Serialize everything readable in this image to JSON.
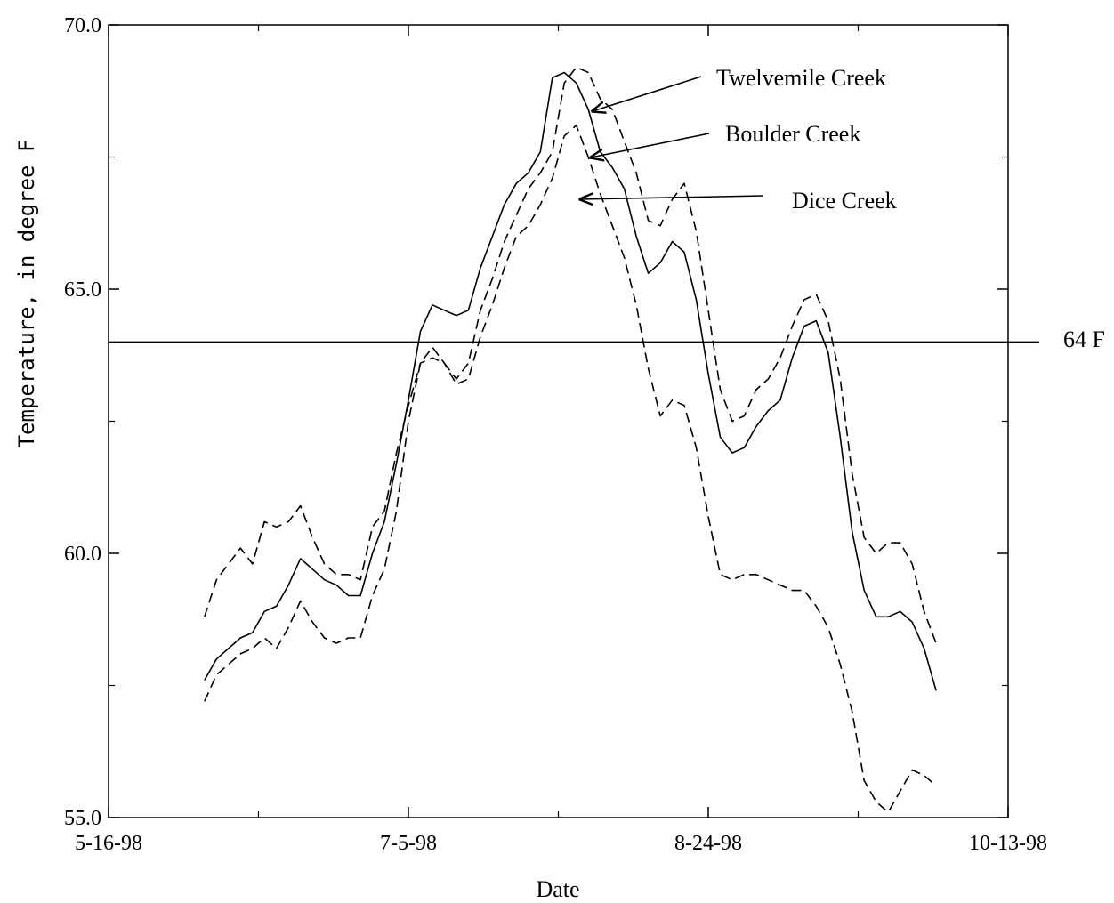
{
  "chart_data": {
    "type": "line",
    "title": "",
    "xlabel": "Date",
    "ylabel": "Temperature, in degree F",
    "x_ticks": [
      "5-16-98",
      "7-5-98",
      "8-24-98",
      "10-13-98"
    ],
    "y_ticks": [
      "55.0",
      "60.0",
      "65.0",
      "70.0"
    ],
    "xlim": [
      "1998-05-16",
      "1998-10-13"
    ],
    "ylim": [
      55.0,
      70.0
    ],
    "grid": false,
    "reference_line": {
      "label": "64 F",
      "y": 64.0
    },
    "x": [
      "1998-06-01",
      "1998-06-03",
      "1998-06-05",
      "1998-06-07",
      "1998-06-09",
      "1998-06-11",
      "1998-06-13",
      "1998-06-15",
      "1998-06-17",
      "1998-06-19",
      "1998-06-21",
      "1998-06-23",
      "1998-06-25",
      "1998-06-27",
      "1998-06-29",
      "1998-07-01",
      "1998-07-03",
      "1998-07-05",
      "1998-07-07",
      "1998-07-09",
      "1998-07-11",
      "1998-07-13",
      "1998-07-15",
      "1998-07-17",
      "1998-07-19",
      "1998-07-21",
      "1998-07-23",
      "1998-07-25",
      "1998-07-27",
      "1998-07-29",
      "1998-07-31",
      "1998-08-02",
      "1998-08-04",
      "1998-08-06",
      "1998-08-08",
      "1998-08-10",
      "1998-08-12",
      "1998-08-14",
      "1998-08-16",
      "1998-08-18",
      "1998-08-20",
      "1998-08-22",
      "1998-08-24",
      "1998-08-26",
      "1998-08-28",
      "1998-08-30",
      "1998-09-01",
      "1998-09-03",
      "1998-09-05",
      "1998-09-07",
      "1998-09-09",
      "1998-09-11",
      "1998-09-13",
      "1998-09-15",
      "1998-09-17",
      "1998-09-19",
      "1998-09-21",
      "1998-09-23",
      "1998-09-25",
      "1998-09-27",
      "1998-09-29",
      "1998-10-01"
    ],
    "series": [
      {
        "name": "Twelvemile Creek",
        "style": "dashed",
        "values": [
          58.8,
          59.5,
          59.8,
          60.1,
          59.8,
          60.6,
          60.5,
          60.6,
          60.9,
          60.3,
          59.8,
          59.6,
          59.6,
          59.5,
          60.5,
          60.8,
          61.9,
          62.8,
          63.6,
          63.7,
          63.6,
          63.3,
          63.6,
          64.6,
          65.2,
          65.9,
          66.4,
          66.9,
          67.2,
          67.6,
          68.9,
          69.2,
          69.1,
          68.6,
          68.4,
          67.8,
          67.2,
          66.3,
          66.2,
          66.7,
          67.0,
          66.1,
          64.6,
          63.1,
          62.5,
          62.6,
          63.1,
          63.3,
          63.7,
          64.3,
          64.8,
          64.9,
          64.4,
          63.3,
          61.5,
          60.3,
          60.0,
          60.2,
          60.2,
          59.8,
          58.9,
          58.3
        ]
      },
      {
        "name": "Boulder Creek",
        "style": "solid",
        "values": [
          57.6,
          58.0,
          58.2,
          58.4,
          58.5,
          58.9,
          59.0,
          59.4,
          59.9,
          59.7,
          59.5,
          59.4,
          59.2,
          59.2,
          60.0,
          60.6,
          61.7,
          62.9,
          64.2,
          64.7,
          64.6,
          64.5,
          64.6,
          65.4,
          66.0,
          66.6,
          67.0,
          67.2,
          67.6,
          69.0,
          69.1,
          68.9,
          68.4,
          67.6,
          67.3,
          66.9,
          66.0,
          65.3,
          65.5,
          65.9,
          65.7,
          64.8,
          63.4,
          62.2,
          61.9,
          62.0,
          62.4,
          62.7,
          62.9,
          63.7,
          64.3,
          64.4,
          63.8,
          62.2,
          60.4,
          59.3,
          58.8,
          58.8,
          58.9,
          58.7,
          58.2,
          57.4
        ]
      },
      {
        "name": "Dice Creek",
        "style": "dashed",
        "values": [
          57.2,
          57.7,
          57.9,
          58.1,
          58.2,
          58.4,
          58.2,
          58.6,
          59.1,
          58.7,
          58.4,
          58.3,
          58.4,
          58.4,
          59.2,
          59.7,
          60.8,
          62.5,
          63.6,
          63.9,
          63.6,
          63.2,
          63.3,
          64.1,
          64.7,
          65.4,
          66.0,
          66.2,
          66.6,
          67.1,
          67.9,
          68.1,
          67.5,
          66.8,
          66.2,
          65.6,
          64.7,
          63.5,
          62.6,
          62.9,
          62.8,
          62.0,
          60.7,
          59.6,
          59.5,
          59.6,
          59.6,
          59.5,
          59.4,
          59.3,
          59.3,
          59.0,
          58.6,
          57.9,
          57.0,
          55.7,
          55.3,
          55.1,
          55.5,
          55.9,
          55.8,
          55.6
        ]
      }
    ],
    "annotations": [
      "Twelvemile Creek",
      "Boulder Creek",
      "Dice Creek"
    ]
  }
}
